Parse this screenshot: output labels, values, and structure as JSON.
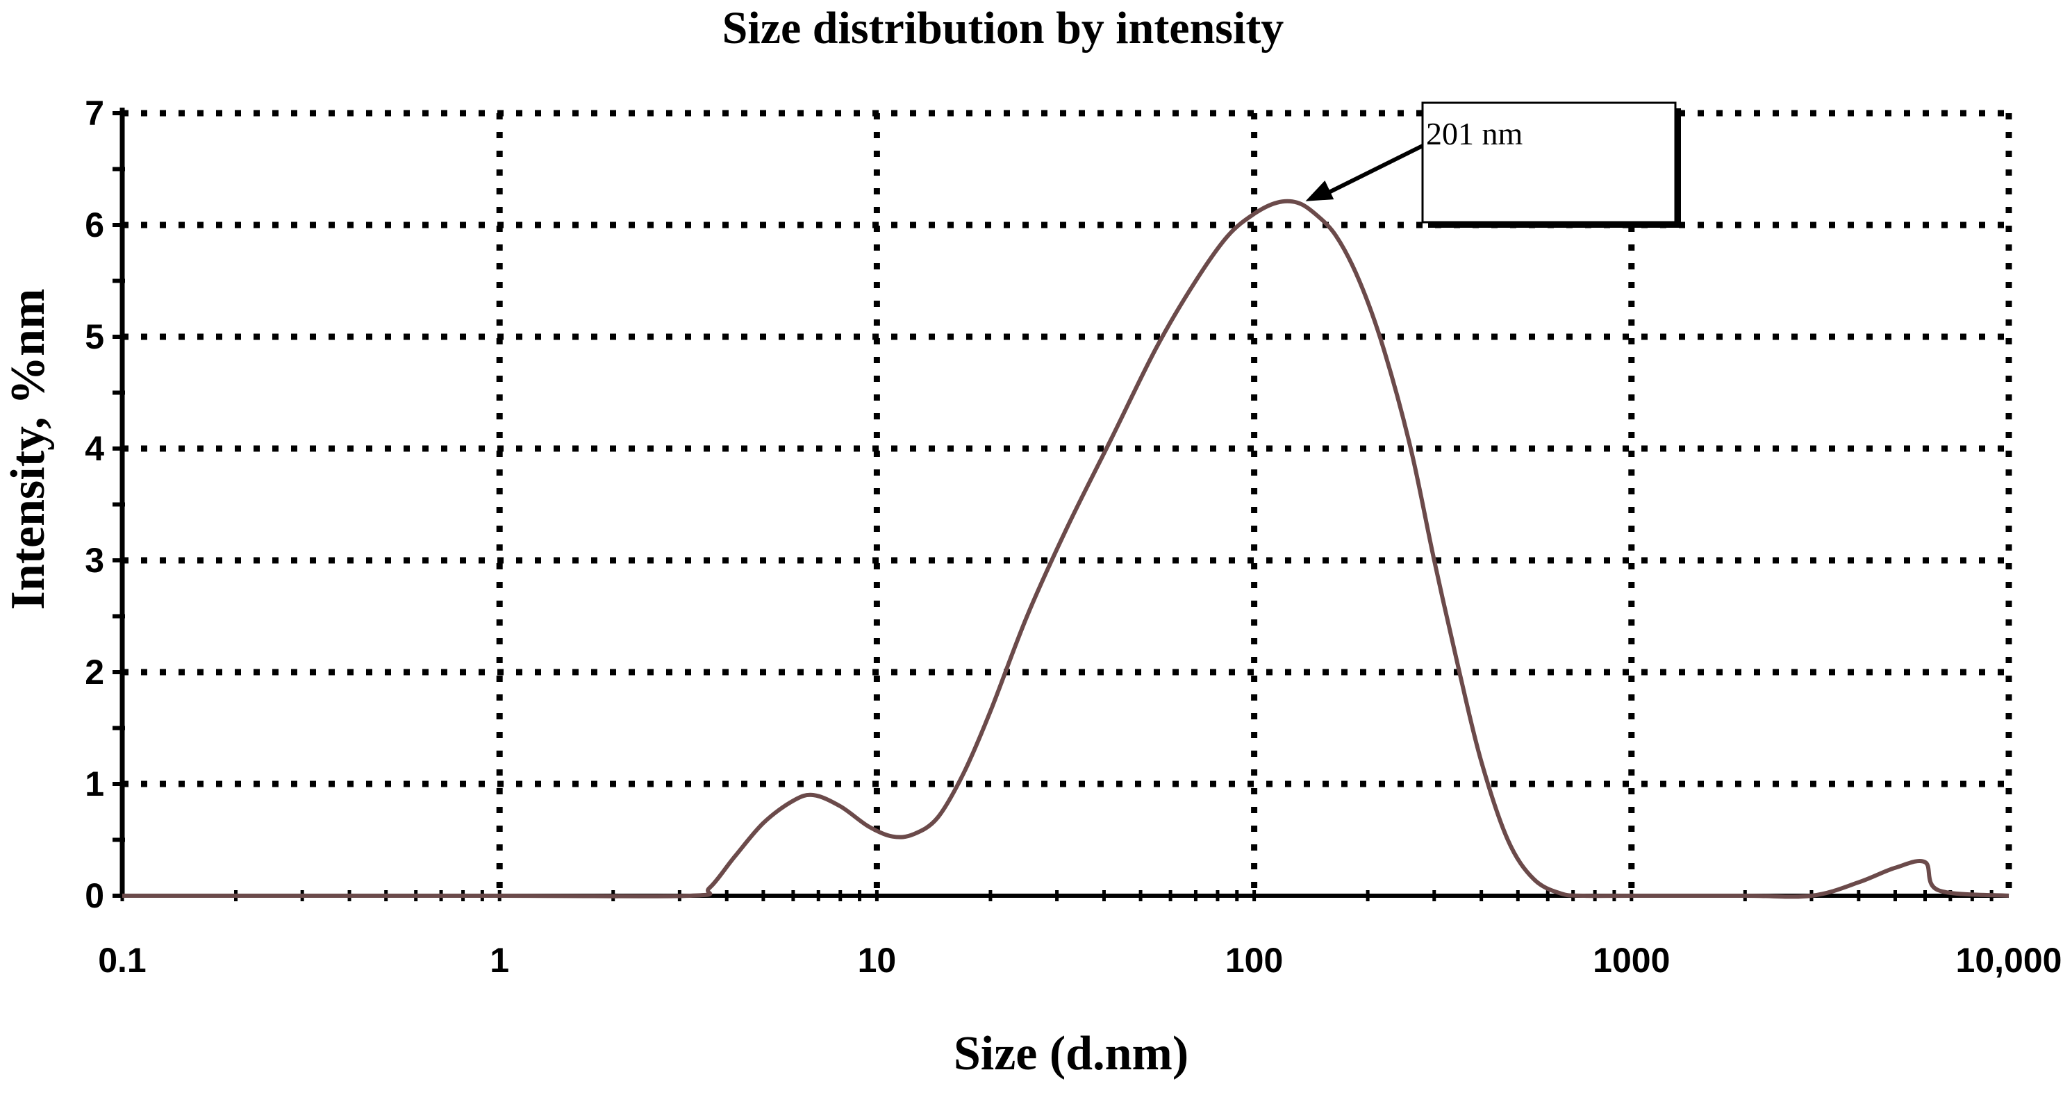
{
  "chart_data": {
    "type": "line",
    "title": "Size distribution  by intensity",
    "xlabel": "Size (d.nm)",
    "ylabel": "Intensity,  %nm",
    "x_scale": "log",
    "xlim": [
      0.1,
      10000
    ],
    "ylim": [
      0,
      7
    ],
    "grid": true,
    "x_ticks": [
      {
        "value": 0.1,
        "label": "0.1"
      },
      {
        "value": 1,
        "label": "1"
      },
      {
        "value": 10,
        "label": "10"
      },
      {
        "value": 100,
        "label": "100"
      },
      {
        "value": 1000,
        "label": "1000"
      },
      {
        "value": 10000,
        "label": "10,000"
      }
    ],
    "y_ticks": [
      {
        "value": 0,
        "label": "0"
      },
      {
        "value": 1,
        "label": "1"
      },
      {
        "value": 2,
        "label": "2"
      },
      {
        "value": 3,
        "label": "3"
      },
      {
        "value": 4,
        "label": "4"
      },
      {
        "value": 5,
        "label": "5"
      },
      {
        "value": 6,
        "label": "6"
      },
      {
        "value": 7,
        "label": "7"
      }
    ],
    "series": [
      {
        "color": "#6b4a4a",
        "x": [
          0.1,
          1,
          3.2,
          3.6,
          4.2,
          5.0,
          6.0,
          6.8,
          8.0,
          9.5,
          11.0,
          12.5,
          14.5,
          17,
          20,
          25,
          32,
          42,
          55,
          70,
          85,
          100,
          115,
          130,
          145,
          165,
          190,
          220,
          260,
          300,
          350,
          400,
          470,
          550,
          650,
          750,
          1000,
          2000,
          3000,
          4000,
          5000,
          6000,
          6500,
          10000
        ],
        "y": [
          0,
          0,
          0,
          0.07,
          0.35,
          0.65,
          0.85,
          0.9,
          0.8,
          0.62,
          0.53,
          0.55,
          0.7,
          1.1,
          1.65,
          2.5,
          3.3,
          4.1,
          4.9,
          5.5,
          5.9,
          6.1,
          6.2,
          6.2,
          6.1,
          5.9,
          5.5,
          4.9,
          4.0,
          3.0,
          2.0,
          1.2,
          0.5,
          0.15,
          0.02,
          0,
          0,
          0,
          0,
          0.12,
          0.25,
          0.3,
          0.05,
          0
        ]
      }
    ],
    "annotations": [
      {
        "text": "201 nm",
        "x": 130,
        "y": 6.2
      }
    ]
  }
}
